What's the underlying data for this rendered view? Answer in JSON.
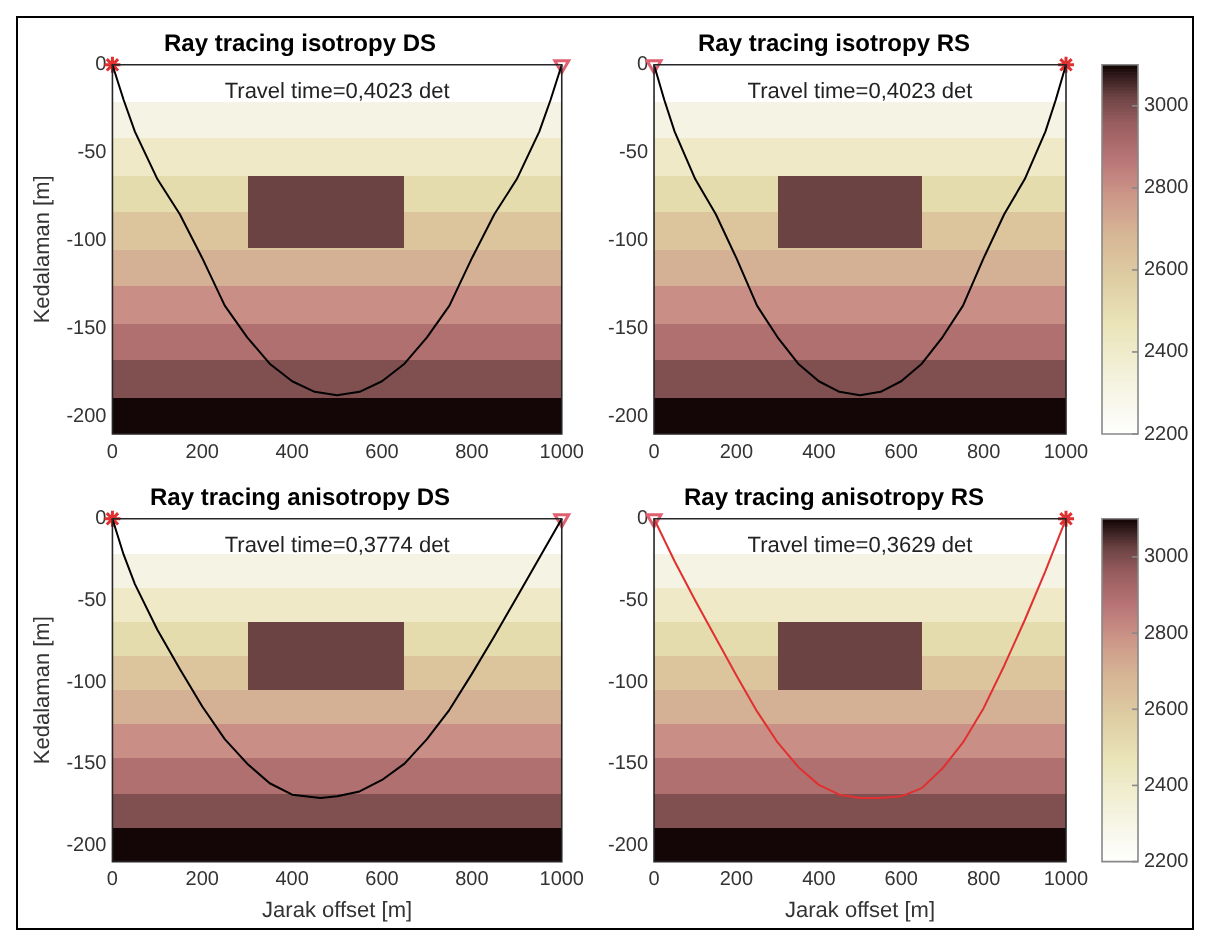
{
  "chart_data": [
    {
      "type": "line",
      "title": "Ray tracing isotropy DS",
      "ylabel": "Kedalaman [m]",
      "annotations": [
        "Travel time=0,4023 det"
      ],
      "bands": [
        {
          "axis": "y",
          "from": -42,
          "to": -21,
          "color": "#f5f3e3"
        },
        {
          "axis": "y",
          "from": -63,
          "to": -42,
          "color": "#efe9c8"
        },
        {
          "axis": "y",
          "from": -84,
          "to": -63,
          "color": "#e5dcae"
        },
        {
          "axis": "y",
          "from": -105,
          "to": -84,
          "color": "#dcc59d"
        },
        {
          "axis": "y",
          "from": -126,
          "to": -105,
          "color": "#d4b094"
        },
        {
          "axis": "y",
          "from": -147,
          "to": -126,
          "color": "#c98f86"
        },
        {
          "axis": "y",
          "from": -168,
          "to": -147,
          "color": "#b07070"
        },
        {
          "axis": "y",
          "from": -189,
          "to": -168,
          "color": "#805050"
        },
        {
          "axis": "y",
          "from": -210,
          "to": -189,
          "color": "#140606"
        }
      ],
      "xlim": [
        0,
        1000
      ],
      "xticks": [
        0,
        200,
        400,
        600,
        800,
        1000
      ],
      "ylim": [
        -210,
        0
      ],
      "yticks": [
        -200,
        -150,
        -100,
        -50,
        0
      ],
      "grid": false,
      "legend": false,
      "series": [
        {
          "type": "line",
          "color": "#000000",
          "marker": "none",
          "x": [
            0,
            25,
            50,
            100,
            150,
            200,
            250,
            300,
            350,
            400,
            450,
            500,
            550,
            600,
            650,
            700,
            750,
            800,
            850,
            900,
            950,
            975,
            1000
          ],
          "values": [
            0,
            -20,
            -38,
            -65,
            -85,
            -110,
            -137,
            -155,
            -170,
            -180,
            -186,
            -188,
            -186,
            -180,
            -170,
            -155,
            -137,
            -110,
            -85,
            -65,
            -38,
            -20,
            0
          ]
        },
        {
          "type": "scatter",
          "color": "#e03030",
          "marker": "cross",
          "x": [
            0
          ],
          "values": [
            0
          ]
        },
        {
          "type": "scatter",
          "color": "#e06070",
          "marker": "triangle",
          "x": [
            1000
          ],
          "values": [
            0
          ]
        }
      ]
    },
    {
      "type": "line",
      "title": "Ray tracing isotropy RS",
      "annotations": [
        "Travel time=0,4023 det"
      ],
      "bands": [
        {
          "axis": "y",
          "from": -42,
          "to": -21,
          "color": "#f5f3e3"
        },
        {
          "axis": "y",
          "from": -63,
          "to": -42,
          "color": "#efe9c8"
        },
        {
          "axis": "y",
          "from": -84,
          "to": -63,
          "color": "#e5dcae"
        },
        {
          "axis": "y",
          "from": -105,
          "to": -84,
          "color": "#dcc59d"
        },
        {
          "axis": "y",
          "from": -126,
          "to": -105,
          "color": "#d4b094"
        },
        {
          "axis": "y",
          "from": -147,
          "to": -126,
          "color": "#c98f86"
        },
        {
          "axis": "y",
          "from": -168,
          "to": -147,
          "color": "#b07070"
        },
        {
          "axis": "y",
          "from": -189,
          "to": -168,
          "color": "#805050"
        },
        {
          "axis": "y",
          "from": -210,
          "to": -189,
          "color": "#140606"
        }
      ],
      "clim": [
        2200,
        3100
      ],
      "cticks": [
        2200,
        2400,
        2600,
        2800,
        3000
      ],
      "xlim": [
        0,
        1000
      ],
      "xticks": [
        0,
        200,
        400,
        600,
        800,
        1000
      ],
      "ylim": [
        -210,
        0
      ],
      "yticks": [
        -200,
        -150,
        -100,
        -50,
        0
      ],
      "grid": false,
      "legend": false,
      "series": [
        {
          "type": "line",
          "color": "#000000",
          "marker": "none",
          "x": [
            0,
            25,
            50,
            100,
            150,
            200,
            250,
            300,
            350,
            400,
            450,
            500,
            550,
            600,
            650,
            700,
            750,
            800,
            850,
            900,
            950,
            975,
            1000
          ],
          "values": [
            0,
            -20,
            -38,
            -65,
            -85,
            -110,
            -137,
            -155,
            -170,
            -180,
            -186,
            -188,
            -186,
            -180,
            -170,
            -155,
            -137,
            -110,
            -85,
            -65,
            -38,
            -20,
            0
          ]
        },
        {
          "type": "scatter",
          "color": "#e06070",
          "marker": "triangle",
          "x": [
            0
          ],
          "values": [
            0
          ]
        },
        {
          "type": "scatter",
          "color": "#e03030",
          "marker": "cross",
          "x": [
            1000
          ],
          "values": [
            0
          ]
        }
      ]
    },
    {
      "type": "line",
      "title": "Ray tracing anisotropy DS",
      "xlabel": "Jarak offset [m]",
      "ylabel": "Kedalaman [m]",
      "annotations": [
        "Travel time=0,3774 det"
      ],
      "bands": [
        {
          "axis": "y",
          "from": -42,
          "to": -21,
          "color": "#f5f3e3"
        },
        {
          "axis": "y",
          "from": -63,
          "to": -42,
          "color": "#efe9c8"
        },
        {
          "axis": "y",
          "from": -84,
          "to": -63,
          "color": "#e5dcae"
        },
        {
          "axis": "y",
          "from": -105,
          "to": -84,
          "color": "#dcc59d"
        },
        {
          "axis": "y",
          "from": -126,
          "to": -105,
          "color": "#d4b094"
        },
        {
          "axis": "y",
          "from": -147,
          "to": -126,
          "color": "#c98f86"
        },
        {
          "axis": "y",
          "from": -168,
          "to": -147,
          "color": "#b07070"
        },
        {
          "axis": "y",
          "from": -189,
          "to": -168,
          "color": "#805050"
        },
        {
          "axis": "y",
          "from": -210,
          "to": -189,
          "color": "#140606"
        }
      ],
      "xlim": [
        0,
        1000
      ],
      "xticks": [
        0,
        200,
        400,
        600,
        800,
        1000
      ],
      "ylim": [
        -210,
        0
      ],
      "yticks": [
        -200,
        -150,
        -100,
        -50,
        0
      ],
      "grid": false,
      "legend": false,
      "series": [
        {
          "type": "line",
          "color": "#000000",
          "marker": "none",
          "x": [
            0,
            25,
            50,
            100,
            150,
            200,
            250,
            300,
            350,
            400,
            463,
            500,
            550,
            600,
            650,
            700,
            750,
            800,
            850,
            900,
            950,
            1000
          ],
          "values": [
            0,
            -22,
            -40,
            -68,
            -92,
            -115,
            -135,
            -150,
            -162,
            -169,
            -171,
            -170,
            -167,
            -160,
            -150,
            -135,
            -117,
            -95,
            -72,
            -48,
            -24,
            0
          ]
        },
        {
          "type": "scatter",
          "color": "#e03030",
          "marker": "cross",
          "x": [
            0
          ],
          "values": [
            0
          ]
        },
        {
          "type": "scatter",
          "color": "#e06070",
          "marker": "triangle",
          "x": [
            1000
          ],
          "values": [
            0
          ]
        }
      ]
    },
    {
      "type": "line",
      "title": "Ray tracing anisotropy RS",
      "xlabel": "Jarak offset [m]",
      "annotations": [
        "Travel time=0,3629 det"
      ],
      "bands": [
        {
          "axis": "y",
          "from": -42,
          "to": -21,
          "color": "#f5f3e3"
        },
        {
          "axis": "y",
          "from": -63,
          "to": -42,
          "color": "#efe9c8"
        },
        {
          "axis": "y",
          "from": -84,
          "to": -63,
          "color": "#e5dcae"
        },
        {
          "axis": "y",
          "from": -105,
          "to": -84,
          "color": "#dcc59d"
        },
        {
          "axis": "y",
          "from": -126,
          "to": -105,
          "color": "#d4b094"
        },
        {
          "axis": "y",
          "from": -147,
          "to": -126,
          "color": "#c98f86"
        },
        {
          "axis": "y",
          "from": -168,
          "to": -147,
          "color": "#b07070"
        },
        {
          "axis": "y",
          "from": -189,
          "to": -168,
          "color": "#805050"
        },
        {
          "axis": "y",
          "from": -210,
          "to": -189,
          "color": "#140606"
        }
      ],
      "clim": [
        2200,
        3100
      ],
      "cticks": [
        2200,
        2400,
        2600,
        2800,
        3000
      ],
      "xlim": [
        0,
        1000
      ],
      "xticks": [
        0,
        200,
        400,
        600,
        800,
        1000
      ],
      "ylim": [
        -210,
        0
      ],
      "yticks": [
        -200,
        -150,
        -100,
        -50,
        0
      ],
      "grid": false,
      "legend": false,
      "series": [
        {
          "type": "line",
          "color": "#e03030",
          "marker": "none",
          "x": [
            0,
            50,
            100,
            150,
            200,
            250,
            300,
            350,
            400,
            450,
            500,
            550,
            600,
            650,
            700,
            750,
            800,
            850,
            900,
            950,
            1000
          ],
          "values": [
            0,
            -26,
            -50,
            -73,
            -96,
            -118,
            -137,
            -152,
            -163,
            -169,
            -171,
            -171,
            -170,
            -165,
            -153,
            -137,
            -116,
            -90,
            -62,
            -32,
            0
          ]
        },
        {
          "type": "scatter",
          "color": "#e06070",
          "marker": "triangle",
          "x": [
            0
          ],
          "values": [
            0
          ]
        },
        {
          "type": "scatter",
          "color": "#e03030",
          "marker": "cross",
          "x": [
            1000
          ],
          "values": [
            0
          ]
        }
      ]
    }
  ]
}
